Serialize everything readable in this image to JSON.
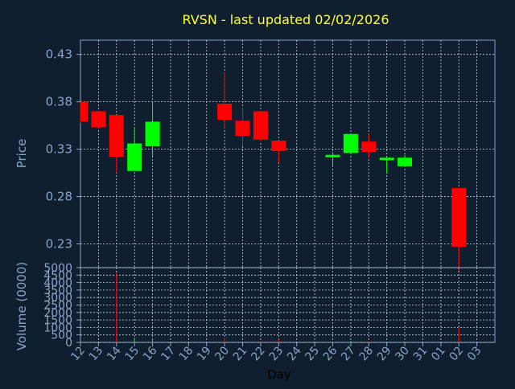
{
  "chart_data": {
    "type": "candlestick",
    "title": "RVSN - last updated 02/02/2026",
    "xlabel": "Day",
    "price_panel": {
      "ylabel": "Price",
      "ylim": [
        0.205,
        0.445
      ],
      "yticks": [
        0.23,
        0.28,
        0.33,
        0.38,
        0.43
      ],
      "ytick_labels": [
        "0.23",
        "0.28",
        "0.33",
        "0.38",
        "0.43"
      ],
      "grid": true
    },
    "volume_panel": {
      "ylabel": "Volume (0000)",
      "ylim": [
        0,
        5000
      ],
      "yticks": [
        0,
        500,
        1000,
        1500,
        2000,
        2500,
        3000,
        3500,
        4000,
        4500,
        5000
      ],
      "ytick_labels": [
        "0",
        "500",
        "1000",
        "1500",
        "2000",
        "2500",
        "3000",
        "3500",
        "4000",
        "4500",
        "5000"
      ],
      "grid": true
    },
    "x_ticks": [
      "12",
      "13",
      "14",
      "15",
      "16",
      "17",
      "18",
      "19",
      "20",
      "21",
      "22",
      "23",
      "24",
      "25",
      "26",
      "27",
      "28",
      "29",
      "30",
      "31",
      "01",
      "02",
      "03"
    ],
    "colors": {
      "background": "#0f1f30",
      "axis": "#8aa4c8",
      "grid": "#c8d2e0",
      "title": "#ffff33",
      "up": "#00ff00",
      "down": "#ff0000"
    },
    "candles": [
      {
        "day": "12",
        "open": 0.38,
        "high": 0.38,
        "low": 0.358,
        "close": 0.359,
        "volume": 0
      },
      {
        "day": "13",
        "open": 0.37,
        "high": 0.37,
        "low": 0.352,
        "close": 0.353,
        "volume": 0
      },
      {
        "day": "14",
        "open": 0.366,
        "high": 0.366,
        "low": 0.305,
        "close": 0.322,
        "volume": 4650
      },
      {
        "day": "15",
        "open": 0.307,
        "high": 0.353,
        "low": 0.307,
        "close": 0.336,
        "volume": 300
      },
      {
        "day": "16",
        "open": 0.333,
        "high": 0.38,
        "low": 0.323,
        "close": 0.359,
        "volume": 250
      },
      {
        "day": "20",
        "open": 0.378,
        "high": 0.411,
        "low": 0.352,
        "close": 0.361,
        "volume": 300
      },
      {
        "day": "21",
        "open": 0.36,
        "high": 0.374,
        "low": 0.333,
        "close": 0.344,
        "volume": 0
      },
      {
        "day": "22",
        "open": 0.37,
        "high": 0.37,
        "low": 0.338,
        "close": 0.34,
        "volume": 100
      },
      {
        "day": "23",
        "open": 0.339,
        "high": 0.339,
        "low": 0.316,
        "close": 0.328,
        "volume": 200
      },
      {
        "day": "26",
        "open": 0.322,
        "high": 0.327,
        "low": 0.311,
        "close": 0.324,
        "volume": 50
      },
      {
        "day": "27",
        "open": 0.326,
        "high": 0.346,
        "low": 0.326,
        "close": 0.346,
        "volume": 100
      },
      {
        "day": "28",
        "open": 0.338,
        "high": 0.346,
        "low": 0.321,
        "close": 0.327,
        "volume": 80
      },
      {
        "day": "29",
        "open": 0.319,
        "high": 0.32,
        "low": 0.304,
        "close": 0.321,
        "volume": 30
      },
      {
        "day": "30",
        "open": 0.312,
        "high": 0.324,
        "low": 0.312,
        "close": 0.321,
        "volume": 0
      },
      {
        "day": "02",
        "open": 0.289,
        "high": 0.289,
        "low": 0.2,
        "close": 0.227,
        "volume": 950
      }
    ]
  }
}
